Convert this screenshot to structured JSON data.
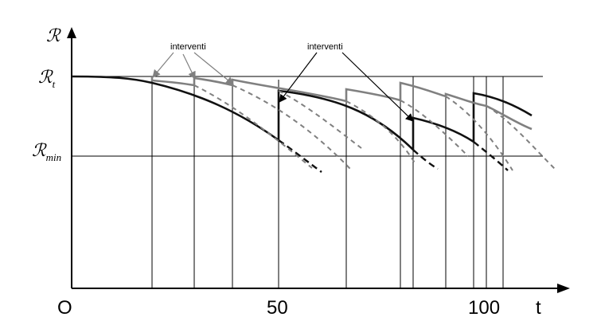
{
  "axes": {
    "y_symbol": "ℛ",
    "x_symbol": "t",
    "origin": "O"
  },
  "levels": {
    "upper": {
      "symbol": "ℛ",
      "subscript": "t"
    },
    "lower": {
      "symbol": "ℛ",
      "subscript": "min"
    }
  },
  "x_ticks": [
    "50",
    "100"
  ],
  "annotations": [
    "interventi",
    "interventi"
  ],
  "colors": {
    "black_curve": "#111111",
    "gray_curve": "#808080",
    "frame": "#000000"
  }
}
